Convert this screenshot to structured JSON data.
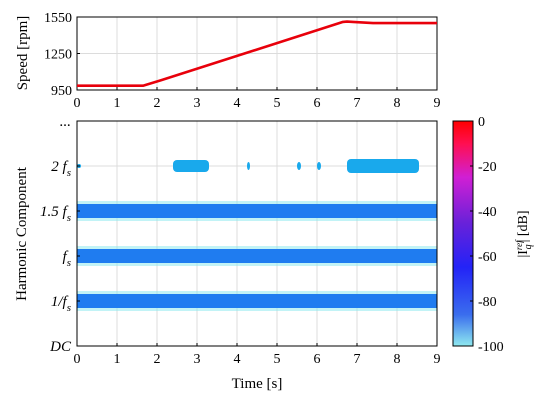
{
  "chart_data": [
    {
      "type": "line",
      "ylabel": "Speed [rpm]",
      "xlim": [
        0,
        9
      ],
      "ylim": [
        950,
        1550
      ],
      "x_ticks": [
        "0",
        "1",
        "2",
        "3",
        "4",
        "5",
        "6",
        "7",
        "8",
        "9"
      ],
      "y_ticks": [
        "950",
        "1250",
        "1550"
      ],
      "grid": true,
      "line_color": "#e8000b",
      "series": [
        {
          "x": [
            0,
            1.65,
            2.1,
            6.65,
            6.75,
            6.9,
            7.4,
            9.0
          ],
          "y": [
            985,
            985,
            1030,
            1510,
            1512,
            1510,
            1500,
            1500
          ]
        }
      ]
    },
    {
      "type": "heatmap",
      "xlabel": "Time [s]",
      "ylabel": "Harmonic Component",
      "xlim": [
        0,
        9
      ],
      "x_ticks": [
        "0",
        "1",
        "2",
        "3",
        "4",
        "5",
        "6",
        "7",
        "8",
        "9"
      ],
      "y_ticks": [
        "DC",
        "1/f",
        "f",
        "1.5 f",
        "2 f",
        "..."
      ],
      "y_tick_subscript": "s",
      "grid": true,
      "colorbar": {
        "label_main": "|I",
        "label_sup": "ref",
        "label_sub": "q",
        "label_tail": "| [dB]",
        "ticks": [
          "0",
          "-20",
          "-40",
          "-60",
          "-80",
          "-100"
        ],
        "range": [
          -100,
          0
        ],
        "colors": [
          "#8fe9ef",
          "#3a6dee",
          "#2323f7",
          "#6a21d9",
          "#d01fd4",
          "#ff0f50",
          "#ff0000"
        ]
      },
      "rows": [
        {
          "component": "1/f",
          "level_db": -73
        },
        {
          "component": "f",
          "level_db": -70
        },
        {
          "component": "1.5 f",
          "level_db": -72
        },
        {
          "component": "2 f",
          "level_db": -90
        }
      ],
      "band_color": "#1f7cf0",
      "halo_color": "#8fe9ef",
      "blob_color": "#19a9ec"
    }
  ]
}
